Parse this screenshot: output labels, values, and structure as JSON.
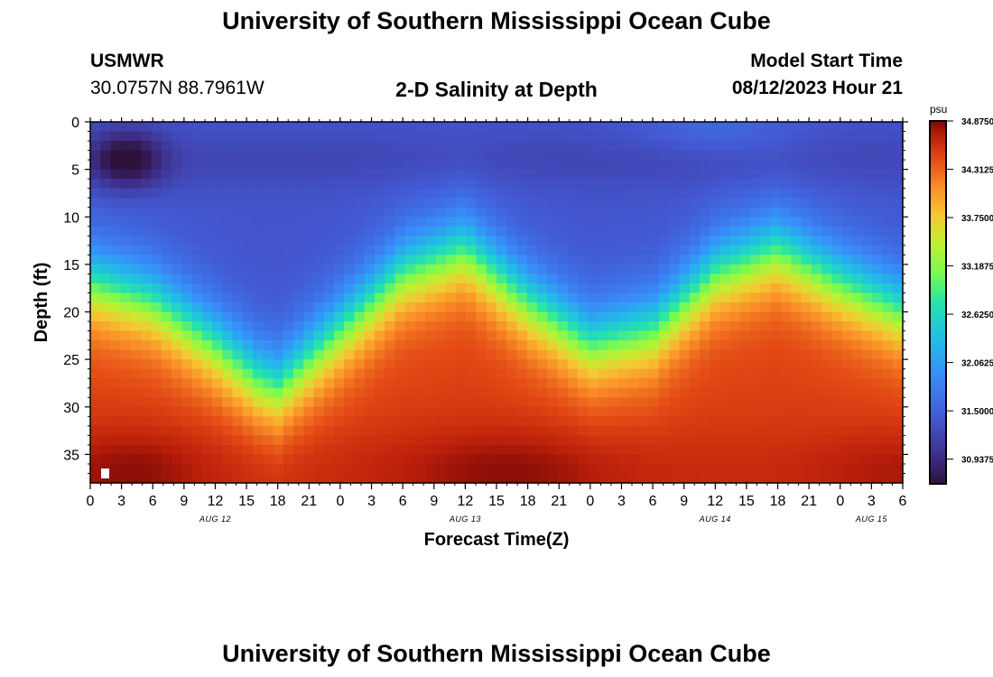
{
  "header": {
    "title": "University of Southern Mississippi Ocean Cube",
    "station_id": "USMWR",
    "coordinates": "30.0757N  88.7961W",
    "plot_title": "2-D Salinity at Depth",
    "start_time_label": "Model Start Time",
    "start_time_value": "08/12/2023 Hour 21"
  },
  "footer": {
    "title": "University of Southern Mississippi Ocean Cube"
  },
  "chart_data": {
    "type": "heatmap",
    "title": "2-D Salinity at Depth",
    "xlabel": "Forecast Time(Z)",
    "ylabel": "Depth (ft)",
    "x_tick_labels": [
      "0",
      "3",
      "6",
      "9",
      "12",
      "15",
      "18",
      "21",
      "0",
      "3",
      "6",
      "9",
      "12",
      "15",
      "18",
      "21",
      "0",
      "3",
      "6",
      "9",
      "12",
      "15",
      "18",
      "21",
      "0",
      "3",
      "6"
    ],
    "date_labels": [
      {
        "label": "AUG 12",
        "tick_index": 4
      },
      {
        "label": "AUG 13",
        "tick_index": 12
      },
      {
        "label": "AUG 14",
        "tick_index": 20
      },
      {
        "label": "AUG 15",
        "tick_index": 25
      }
    ],
    "xlim_hours": [
      0,
      78
    ],
    "ylim_ft": [
      0,
      38
    ],
    "y_ticks": [
      0,
      5,
      10,
      15,
      20,
      25,
      30,
      35
    ],
    "colorbar": {
      "unit": "psu",
      "labels": [
        "34.8750",
        "34.3125",
        "33.7500",
        "33.1875",
        "32.6250",
        "32.0625",
        "31.5000",
        "30.9375"
      ],
      "min": 30.65,
      "max": 34.875
    },
    "halocline_depth_ft": {
      "hours": [
        0,
        6,
        12,
        16,
        18,
        24,
        30,
        36,
        42,
        48,
        54,
        60,
        66,
        72,
        78
      ],
      "depth": [
        17,
        19,
        23.5,
        27,
        28,
        22,
        16,
        13.5,
        19,
        23.5,
        22,
        16,
        13.5,
        17,
        20
      ]
    }
  }
}
